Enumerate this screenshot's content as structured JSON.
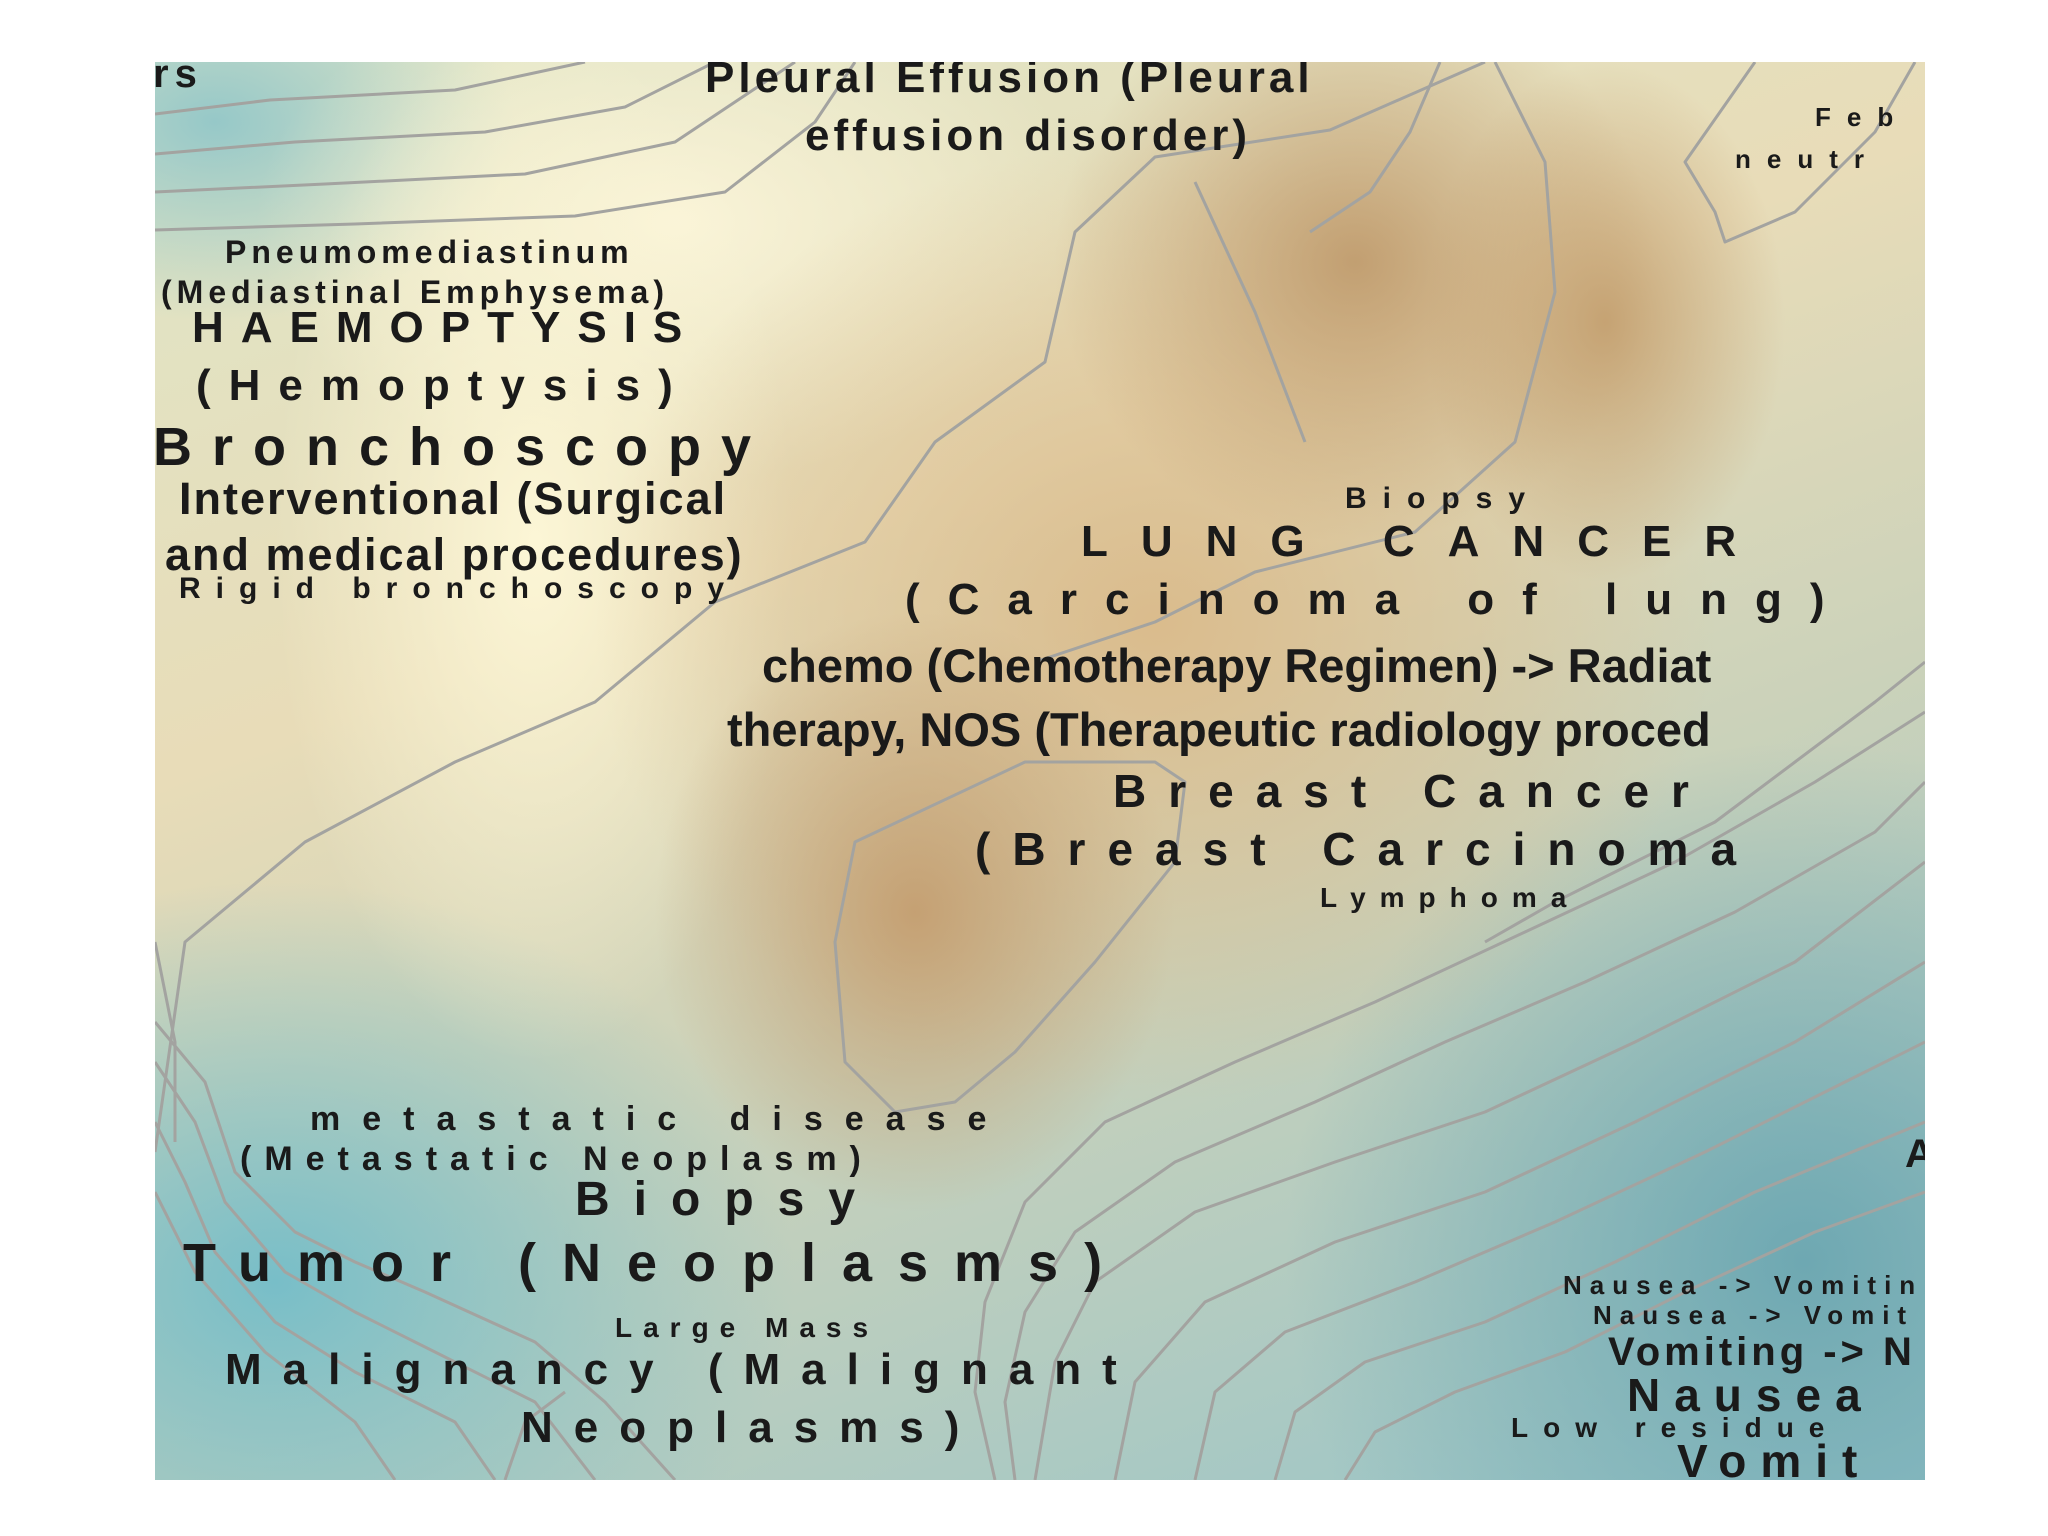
{
  "map": {
    "labels": [
      {
        "id": "pleural-effusion-1",
        "text": "Pleural Effusion (Pleural"
      },
      {
        "id": "pleural-effusion-2",
        "text": "effusion disorder)"
      },
      {
        "id": "corner-fragment",
        "text": "rs"
      },
      {
        "id": "feb-fragment",
        "text": "Feb"
      },
      {
        "id": "neutr-fragment",
        "text": "neutr"
      },
      {
        "id": "pneumomediastinum",
        "text": "Pneumomediastinum"
      },
      {
        "id": "mediastinal-emphysema",
        "text": "(Mediastinal Emphysema)"
      },
      {
        "id": "haemoptysis",
        "text": "HAEMOPTYSIS"
      },
      {
        "id": "hemoptysis",
        "text": "(Hemoptysis)"
      },
      {
        "id": "bronchoscopy",
        "text": "Bronchoscopy"
      },
      {
        "id": "interventional-1",
        "text": "Interventional (Surgical"
      },
      {
        "id": "interventional-2",
        "text": "and medical procedures)"
      },
      {
        "id": "rigid-bronchoscopy",
        "text": "Rigid bronchoscopy"
      },
      {
        "id": "biopsy-small",
        "text": "Biopsy"
      },
      {
        "id": "lung-cancer",
        "text": "LUNG CANCER"
      },
      {
        "id": "carcinoma-of-lung",
        "text": "(Carcinoma of lung)"
      },
      {
        "id": "chemo-1",
        "text": "chemo (Chemotherapy Regimen) -> Radiat"
      },
      {
        "id": "chemo-2",
        "text": "therapy, NOS (Therapeutic radiology proced"
      },
      {
        "id": "breast-cancer",
        "text": "Breast Cancer"
      },
      {
        "id": "breast-carcinoma",
        "text": "(Breast Carcinoma"
      },
      {
        "id": "lymphoma",
        "text": "Lymphoma"
      },
      {
        "id": "metastatic-disease",
        "text": "metastatic disease"
      },
      {
        "id": "metastatic-neoplasm",
        "text": "(Metastatic Neoplasm)"
      },
      {
        "id": "biopsy-large",
        "text": "Biopsy"
      },
      {
        "id": "tumor",
        "text": "Tumor (Neoplasms)"
      },
      {
        "id": "large-mass",
        "text": "Large Mass"
      },
      {
        "id": "malignancy-1",
        "text": "Malignancy (Malignant"
      },
      {
        "id": "malignancy-2",
        "text": "Neoplasms)"
      },
      {
        "id": "a-fragment",
        "text": "A"
      },
      {
        "id": "nausea-vomiting-1",
        "text": "Nausea -> Vomitin"
      },
      {
        "id": "nausea-vomiting-2",
        "text": "Nausea -> Vomit"
      },
      {
        "id": "vomiting-arrow",
        "text": "Vomiting -> N"
      },
      {
        "id": "nausea",
        "text": "Nausea"
      },
      {
        "id": "low-residue",
        "text": "Low residue"
      },
      {
        "id": "vomit",
        "text": "Vomit"
      }
    ]
  }
}
